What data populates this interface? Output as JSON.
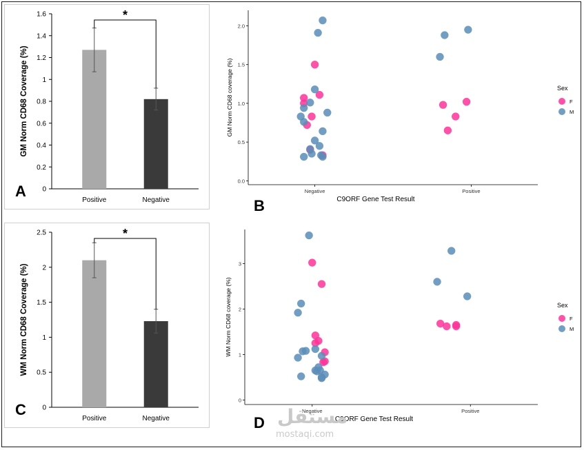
{
  "panel_labels": {
    "a": "A",
    "b": "B",
    "c": "C",
    "d": "D"
  },
  "watermark": {
    "main": "مستقل",
    "sub": "mostaqi.com"
  },
  "colors": {
    "positive_bar": "#a9a9a9",
    "negative_bar": "#3a3a3a",
    "female": "#ff3399",
    "male": "#5b8db8",
    "axis": "#000000"
  },
  "chart_data": [
    {
      "id": "A",
      "type": "bar",
      "categories": [
        "Positive",
        "Negative"
      ],
      "values": [
        1.27,
        0.82
      ],
      "errors": [
        0.2,
        0.1
      ],
      "ylabel": "GM Norm CD68 Coverage (%)",
      "ylim": [
        0,
        1.6
      ],
      "yticks": [
        "0",
        "0.2",
        "0.4",
        "0.6",
        "0.8",
        "1",
        "1.2",
        "1.4",
        "1.6"
      ],
      "significance": "*"
    },
    {
      "id": "B",
      "type": "scatter",
      "xlabel": "C9ORF Gene Test Result",
      "ylabel": "GM Norm CD68 coverage (%)",
      "categories": [
        "Negative",
        "Positive"
      ],
      "ylim": [
        -0.05,
        2.2
      ],
      "yticks": [
        "0.0",
        "0.5",
        "1.0",
        "1.5",
        "2.0"
      ],
      "legend": {
        "title": "Sex",
        "entries": [
          "F",
          "M"
        ],
        "position": "right"
      },
      "series": [
        {
          "name": "F",
          "points": [
            [
              -0.07,
              1.07
            ],
            [
              -0.07,
              1.0
            ],
            [
              -0.05,
              0.72
            ],
            [
              -0.03,
              0.4
            ],
            [
              -0.02,
              0.83
            ],
            [
              0.0,
              1.5
            ],
            [
              0.03,
              1.11
            ],
            [
              0.05,
              0.33
            ],
            [
              0.82,
              0.98
            ],
            [
              0.85,
              0.65
            ],
            [
              0.9,
              0.83
            ],
            [
              0.97,
              1.02
            ]
          ]
        },
        {
          "name": "M",
          "points": [
            [
              -0.09,
              0.83
            ],
            [
              -0.07,
              0.94
            ],
            [
              -0.07,
              0.76
            ],
            [
              -0.07,
              0.31
            ],
            [
              -0.03,
              1.01
            ],
            [
              -0.03,
              0.41
            ],
            [
              -0.02,
              0.35
            ],
            [
              0.0,
              1.18
            ],
            [
              0.0,
              0.52
            ],
            [
              0.02,
              1.91
            ],
            [
              0.03,
              0.45
            ],
            [
              0.04,
              0.33
            ],
            [
              0.05,
              2.07
            ],
            [
              0.05,
              0.31
            ],
            [
              0.05,
              0.64
            ],
            [
              0.08,
              0.88
            ],
            [
              0.8,
              1.6
            ],
            [
              0.83,
              1.88
            ],
            [
              0.98,
              1.95
            ]
          ]
        }
      ]
    },
    {
      "id": "C",
      "type": "bar",
      "categories": [
        "Positive",
        "Negative"
      ],
      "values": [
        2.1,
        1.23
      ],
      "errors": [
        0.25,
        0.17
      ],
      "ylabel": "WM Norm CD68 Coverage (%)",
      "ylim": [
        0,
        2.5
      ],
      "yticks": [
        "0",
        "0.5",
        "1",
        "1.5",
        "2",
        "2.5"
      ],
      "significance": "*"
    },
    {
      "id": "D",
      "type": "scatter",
      "xlabel": "C9ORF Gene Test Result",
      "ylabel": "WM Norm CD68 coverage (%)",
      "categories": [
        "Negative",
        "Positive"
      ],
      "ylim": [
        -0.1,
        3.75
      ],
      "yticks": [
        "0",
        "1",
        "2",
        "3"
      ],
      "legend": {
        "title": "Sex",
        "entries": [
          "F",
          "M"
        ],
        "position": "right"
      },
      "series": [
        {
          "name": "F",
          "points": [
            [
              0.0,
              3.02
            ],
            [
              0.02,
              1.42
            ],
            [
              0.02,
              1.25
            ],
            [
              0.04,
              1.3
            ],
            [
              0.06,
              2.55
            ],
            [
              0.07,
              0.83
            ],
            [
              0.08,
              0.85
            ],
            [
              0.08,
              1.05
            ],
            [
              0.81,
              1.68
            ],
            [
              0.85,
              1.62
            ],
            [
              0.91,
              1.65
            ],
            [
              0.91,
              1.62
            ]
          ]
        },
        {
          "name": "M",
          "points": [
            [
              -0.09,
              0.93
            ],
            [
              -0.09,
              1.92
            ],
            [
              -0.07,
              2.12
            ],
            [
              -0.07,
              0.52
            ],
            [
              -0.06,
              1.07
            ],
            [
              -0.04,
              1.08
            ],
            [
              -0.02,
              3.62
            ],
            [
              0.02,
              1.12
            ],
            [
              0.02,
              0.65
            ],
            [
              0.03,
              0.63
            ],
            [
              0.04,
              0.72
            ],
            [
              0.05,
              0.65
            ],
            [
              0.06,
              0.97
            ],
            [
              0.06,
              0.48
            ],
            [
              0.06,
              0.5
            ],
            [
              0.08,
              0.56
            ],
            [
              0.79,
              2.6
            ],
            [
              0.88,
              3.28
            ],
            [
              0.98,
              2.28
            ]
          ]
        }
      ]
    }
  ]
}
